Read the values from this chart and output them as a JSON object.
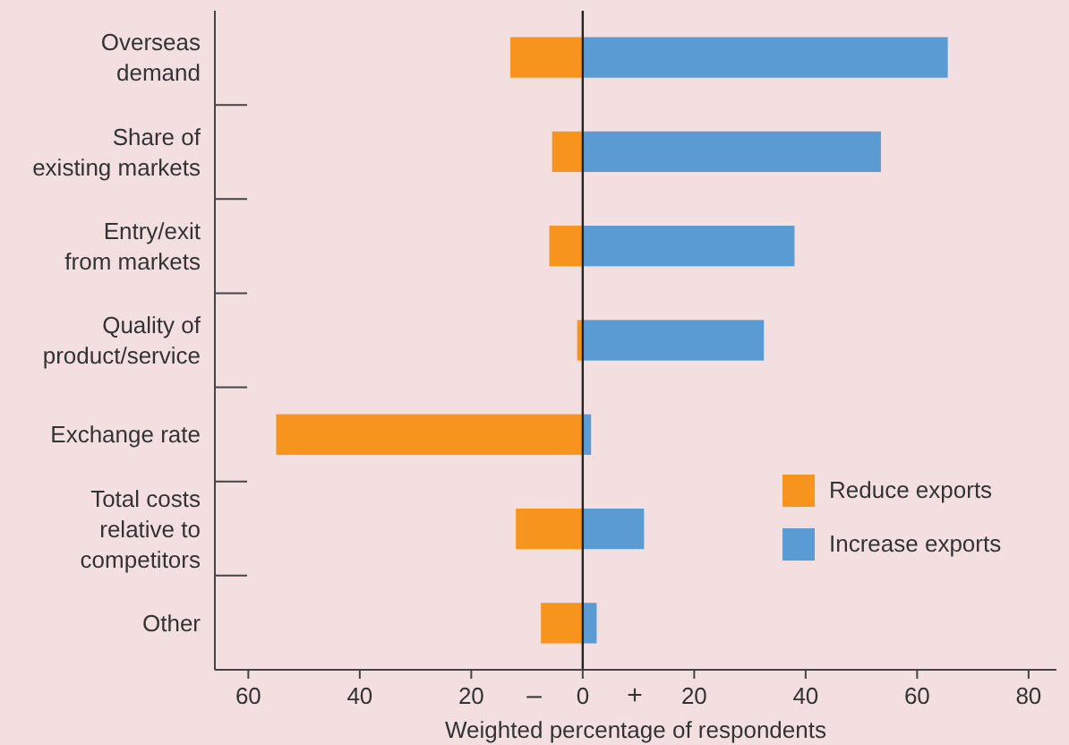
{
  "chart_data": {
    "type": "bar",
    "orientation": "horizontal",
    "stacked": true,
    "categories": [
      "Overseas\ndemand",
      "Share of\nexisting markets",
      "Entry/exit\nfrom markets",
      "Quality of\nproduct/service",
      "Exchange rate",
      "Total costs\nrelative to\ncompetitors",
      "Other"
    ],
    "series": [
      {
        "name": "Reduce exports",
        "color": "#f7941d",
        "values": [
          -13,
          -5.5,
          -6,
          -1,
          -55,
          -12,
          -7.5
        ]
      },
      {
        "name": "Increase exports",
        "color": "#5b9bd3",
        "values": [
          65.5,
          53.5,
          38,
          32.5,
          1.5,
          11,
          2.5
        ]
      }
    ],
    "xlim": [
      -66,
      85
    ],
    "xticks": [
      {
        "value": -60,
        "label": "60"
      },
      {
        "value": -40,
        "label": "40"
      },
      {
        "value": -20,
        "label": "20"
      },
      0,
      20,
      40,
      60,
      80
    ],
    "xlabel": "Weighted percentage of respondents",
    "annotations": [
      "–",
      "+"
    ],
    "legend": "bottom right"
  }
}
